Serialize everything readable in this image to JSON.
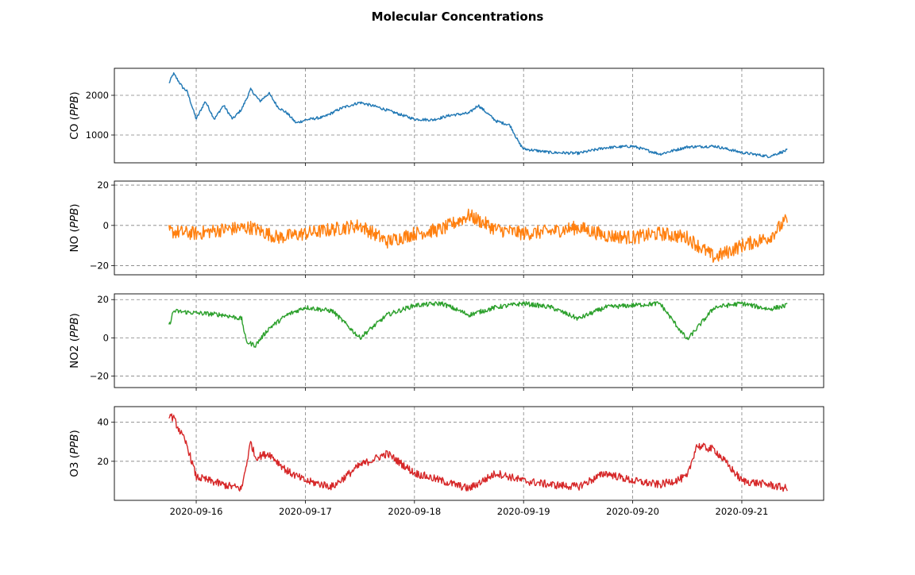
{
  "figure": {
    "title": "Molecular Concentrations"
  },
  "chart_data": [
    {
      "type": "line",
      "title": "",
      "ylabel_main": "CO",
      "ylabel_unit": "PPB",
      "color": "#1f77b4",
      "xlim": [
        "2020-09-15T06:00",
        "2020-09-21T18:00"
      ],
      "ylim": [
        300,
        2680
      ],
      "yticks": [
        1000,
        2000
      ],
      "ytick_labels": [
        "1000",
        "2000"
      ],
      "grid": true,
      "show_xtick_labels": false,
      "series": [
        {
          "noise": 35,
          "x": [
            "2020-09-15T18:00",
            "2020-09-15T19:00",
            "2020-09-15T21:00",
            "2020-09-15T22:00",
            "2020-09-16T00:00",
            "2020-09-16T02:00",
            "2020-09-16T04:00",
            "2020-09-16T06:00",
            "2020-09-16T08:00",
            "2020-09-16T10:00",
            "2020-09-16T12:00",
            "2020-09-16T14:00",
            "2020-09-16T16:00",
            "2020-09-16T18:00",
            "2020-09-16T20:00",
            "2020-09-16T22:00",
            "2020-09-17T00:00",
            "2020-09-17T04:00",
            "2020-09-17T08:00",
            "2020-09-17T12:00",
            "2020-09-17T16:00",
            "2020-09-17T20:00",
            "2020-09-18T00:00",
            "2020-09-18T04:00",
            "2020-09-18T08:00",
            "2020-09-18T12:00",
            "2020-09-18T14:00",
            "2020-09-18T18:00",
            "2020-09-18T21:00",
            "2020-09-18T23:00",
            "2020-09-19T00:00",
            "2020-09-19T06:00",
            "2020-09-19T12:00",
            "2020-09-19T18:00",
            "2020-09-20T00:00",
            "2020-09-20T06:00",
            "2020-09-20T12:00",
            "2020-09-20T18:00",
            "2020-09-21T00:00",
            "2020-09-21T06:00",
            "2020-09-21T10:00"
          ],
          "y": [
            2300,
            2550,
            2200,
            2100,
            1400,
            1850,
            1400,
            1750,
            1400,
            1650,
            2150,
            1850,
            2050,
            1700,
            1550,
            1300,
            1380,
            1450,
            1680,
            1820,
            1700,
            1550,
            1400,
            1380,
            1500,
            1550,
            1750,
            1350,
            1250,
            800,
            650,
            560,
            540,
            680,
            720,
            520,
            700,
            720,
            560,
            460,
            620
          ]
        }
      ]
    },
    {
      "type": "line",
      "title": "",
      "ylabel_main": "NO",
      "ylabel_unit": "PPB",
      "color": "#ff7f0e",
      "xlim": [
        "2020-09-15T06:00",
        "2020-09-21T18:00"
      ],
      "ylim": [
        -24.5,
        22
      ],
      "yticks": [
        -20,
        0,
        20
      ],
      "ytick_labels": [
        "−20",
        "0",
        "20"
      ],
      "grid": true,
      "show_xtick_labels": false,
      "series": [
        {
          "noise": 3.5,
          "x": [
            "2020-09-15T18:00",
            "2020-09-16T00:00",
            "2020-09-16T06:00",
            "2020-09-16T12:00",
            "2020-09-16T18:00",
            "2020-09-17T00:00",
            "2020-09-17T06:00",
            "2020-09-17T12:00",
            "2020-09-17T18:00",
            "2020-09-18T00:00",
            "2020-09-18T06:00",
            "2020-09-18T12:00",
            "2020-09-18T18:00",
            "2020-09-19T00:00",
            "2020-09-19T06:00",
            "2020-09-19T12:00",
            "2020-09-19T18:00",
            "2020-09-20T00:00",
            "2020-09-20T06:00",
            "2020-09-20T12:00",
            "2020-09-20T18:00",
            "2020-09-21T00:00",
            "2020-09-21T06:00",
            "2020-09-21T10:00"
          ],
          "y": [
            -3,
            -4,
            -2,
            -1,
            -6,
            -4,
            -2,
            0,
            -8,
            -4,
            -2,
            5,
            -2,
            -4,
            -3,
            -1,
            -5,
            -6,
            -4,
            -6,
            -16,
            -10,
            -6,
            3
          ]
        }
      ]
    },
    {
      "type": "line",
      "title": "",
      "ylabel_main": "NO2",
      "ylabel_unit": "PPB",
      "color": "#2ca02c",
      "xlim": [
        "2020-09-15T06:00",
        "2020-09-21T18:00"
      ],
      "ylim": [
        -26,
        23
      ],
      "yticks": [
        -20,
        0,
        20
      ],
      "ytick_labels": [
        "−20",
        "0",
        "20"
      ],
      "grid": true,
      "show_xtick_labels": false,
      "series": [
        {
          "noise": 1.2,
          "x": [
            "2020-09-15T18:00",
            "2020-09-15T19:00",
            "2020-09-16T00:00",
            "2020-09-16T06:00",
            "2020-09-16T10:00",
            "2020-09-16T11:00",
            "2020-09-16T13:00",
            "2020-09-16T16:00",
            "2020-09-16T20:00",
            "2020-09-17T00:00",
            "2020-09-17T06:00",
            "2020-09-17T12:00",
            "2020-09-17T18:00",
            "2020-09-18T00:00",
            "2020-09-18T06:00",
            "2020-09-18T12:00",
            "2020-09-18T18:00",
            "2020-09-19T00:00",
            "2020-09-19T06:00",
            "2020-09-19T12:00",
            "2020-09-19T18:00",
            "2020-09-20T00:00",
            "2020-09-20T06:00",
            "2020-09-20T12:00",
            "2020-09-20T18:00",
            "2020-09-21T00:00",
            "2020-09-21T06:00",
            "2020-09-21T10:00"
          ],
          "y": [
            6,
            14,
            13,
            12,
            10,
            -2,
            -4,
            5,
            12,
            16,
            14,
            0,
            12,
            17,
            18,
            12,
            16,
            18,
            16,
            10,
            16,
            17,
            18,
            -1,
            16,
            18,
            15,
            17
          ]
        }
      ]
    },
    {
      "type": "line",
      "title": "",
      "ylabel_main": "O3",
      "ylabel_unit": "PPB",
      "color": "#d62728",
      "xlim": [
        "2020-09-15T06:00",
        "2020-09-21T18:00"
      ],
      "ylim": [
        0,
        48
      ],
      "yticks": [
        20,
        40
      ],
      "ytick_labels": [
        "20",
        "40"
      ],
      "grid": true,
      "show_xtick_labels": true,
      "xticks": [
        "2020-09-16T00:00",
        "2020-09-17T00:00",
        "2020-09-18T00:00",
        "2020-09-19T00:00",
        "2020-09-20T00:00",
        "2020-09-21T00:00"
      ],
      "xtick_labels": [
        "2020-09-16",
        "2020-09-17",
        "2020-09-18",
        "2020-09-19",
        "2020-09-20",
        "2020-09-21"
      ],
      "series": [
        {
          "noise": 2,
          "x": [
            "2020-09-15T18:00",
            "2020-09-15T19:00",
            "2020-09-15T22:00",
            "2020-09-16T00:00",
            "2020-09-16T06:00",
            "2020-09-16T10:00",
            "2020-09-16T12:00",
            "2020-09-16T13:00",
            "2020-09-16T16:00",
            "2020-09-16T20:00",
            "2020-09-17T00:00",
            "2020-09-17T06:00",
            "2020-09-17T12:00",
            "2020-09-17T18:00",
            "2020-09-18T00:00",
            "2020-09-18T06:00",
            "2020-09-18T12:00",
            "2020-09-18T18:00",
            "2020-09-19T00:00",
            "2020-09-19T06:00",
            "2020-09-19T12:00",
            "2020-09-19T18:00",
            "2020-09-20T00:00",
            "2020-09-20T06:00",
            "2020-09-20T12:00",
            "2020-09-20T14:00",
            "2020-09-20T18:00",
            "2020-09-21T00:00",
            "2020-09-21T06:00",
            "2020-09-21T10:00"
          ],
          "y": [
            44,
            42,
            28,
            12,
            8,
            6,
            30,
            22,
            24,
            15,
            10,
            7,
            18,
            24,
            14,
            10,
            6,
            14,
            10,
            8,
            7,
            14,
            10,
            8,
            12,
            28,
            26,
            10,
            8,
            6
          ]
        }
      ]
    }
  ]
}
